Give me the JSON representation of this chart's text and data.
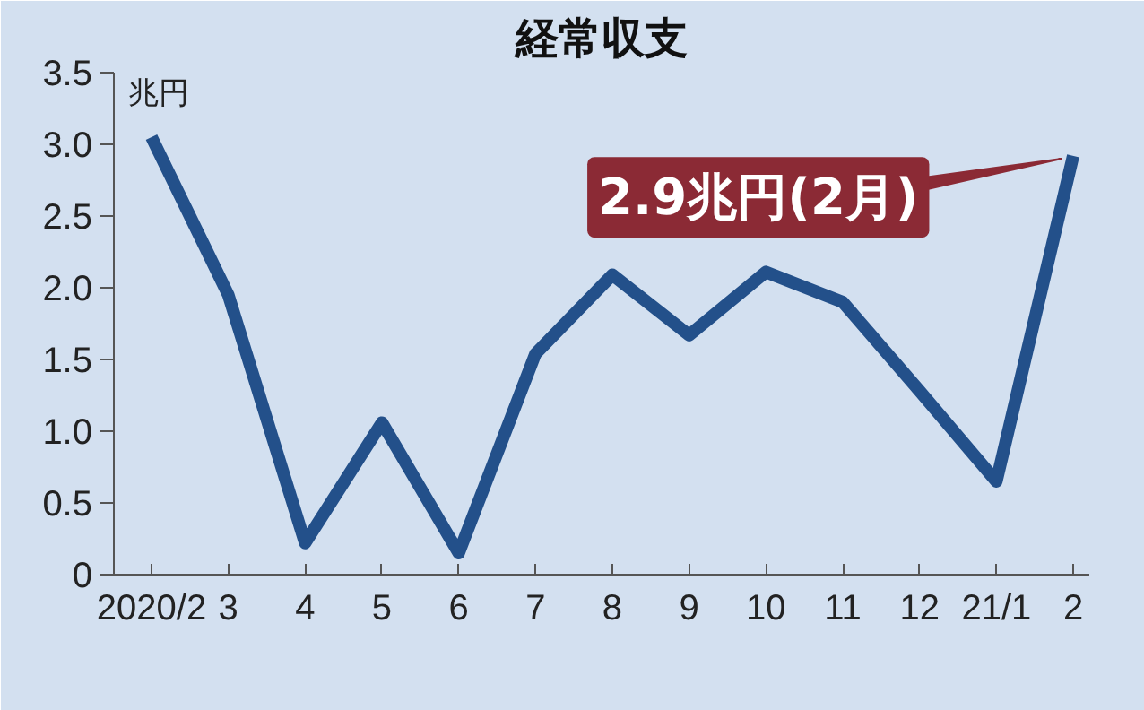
{
  "chart_data": {
    "type": "line",
    "title": "経常収支",
    "ylabel": "兆円",
    "categories": [
      "2020/2",
      "3",
      "4",
      "5",
      "6",
      "7",
      "8",
      "9",
      "10",
      "11",
      "12",
      "21/1",
      "2"
    ],
    "series": [
      {
        "color": "#23508a",
        "values": [
          3.05,
          1.95,
          0.22,
          1.06,
          0.15,
          1.54,
          2.09,
          1.67,
          2.11,
          1.9,
          1.28,
          0.65,
          2.92
        ]
      }
    ],
    "ylim": [
      0,
      3.5
    ],
    "yticks": [
      {
        "value": 0,
        "label": "0"
      },
      0.5,
      {
        "value": 1,
        "label": "1.0"
      },
      1.5,
      {
        "value": 2,
        "label": "2.0"
      },
      2.5,
      {
        "value": 3,
        "label": "3.0"
      },
      3.5
    ],
    "annotations": [
      {
        "text": "2.9兆円(2月)",
        "x": "2",
        "y": 2.9
      }
    ],
    "grid": false,
    "marker": "none",
    "line_style": "solid"
  }
}
